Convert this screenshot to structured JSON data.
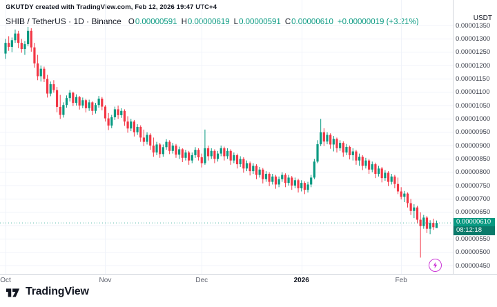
{
  "attribution": "GKUTDY created with TradingView.com, Feb 12, 2026 19:47 UTC+4",
  "legend": {
    "title": "SHIB / TetherUS · 1D · Binance",
    "ohlc": [
      {
        "label": "O",
        "value": "0.00000591"
      },
      {
        "label": "H",
        "value": "0.00000619"
      },
      {
        "label": "L",
        "value": "0.00000591"
      },
      {
        "label": "C",
        "value": "0.00000610"
      }
    ],
    "change": "+0.00000019 (+3.21%)"
  },
  "price_axis": {
    "currency": "USDT"
  },
  "last_price_badge": {
    "price": "0.00000610",
    "countdown": "08:12:18"
  },
  "footer": {
    "brand": "TradingView"
  },
  "colors": {
    "up": "#089981",
    "down": "#F23645",
    "grid": "#F0F3FA",
    "axis_border": "#D1D4DC",
    "badge_bg": "#089981",
    "badge_countdown_bg": "#0B7A6A",
    "flash": "#CA34D6",
    "text_primary": "#131722",
    "text_secondary": "#5B5F6B"
  },
  "chart_data": {
    "type": "candlestick",
    "symbol": "SHIB / TetherUS",
    "exchange": "Binance",
    "interval": "1D",
    "unit_note": "candle prices are in units of 0.00000001 USDT (1e-8)",
    "y_axis": {
      "min": 450,
      "max": 1350,
      "step": 50,
      "labels": [
        "0.00001350",
        "0.00001300",
        "0.00001250",
        "0.00001200",
        "0.00001150",
        "0.00001100",
        "0.00001050",
        "0.00001000",
        "0.00000950",
        "0.00000900",
        "0.00000850",
        "0.00000800",
        "0.00000750",
        "0.00000700",
        "0.00000650",
        "0.00000600",
        "0.00000550",
        "0.00000500",
        "0.00000450"
      ]
    },
    "x_axis": {
      "ticks": [
        {
          "label": "Oct",
          "index": 0,
          "bold": false
        },
        {
          "label": "Nov",
          "index": 31,
          "bold": false
        },
        {
          "label": "Dec",
          "index": 61,
          "bold": false
        },
        {
          "label": "2026",
          "index": 92,
          "bold": true
        },
        {
          "label": "Feb",
          "index": 123,
          "bold": false
        }
      ]
    },
    "last": {
      "open": 591,
      "high": 619,
      "low": 591,
      "close": 610,
      "change": 19,
      "change_pct": 3.21,
      "countdown": "08:12:18"
    },
    "candles": [
      [
        1245,
        1300,
        1225,
        1285
      ],
      [
        1285,
        1310,
        1255,
        1270
      ],
      [
        1270,
        1305,
        1250,
        1295
      ],
      [
        1295,
        1335,
        1285,
        1320
      ],
      [
        1320,
        1330,
        1265,
        1285
      ],
      [
        1285,
        1300,
        1248,
        1262
      ],
      [
        1262,
        1292,
        1240,
        1280
      ],
      [
        1280,
        1345,
        1272,
        1330
      ],
      [
        1330,
        1340,
        1252,
        1268
      ],
      [
        1268,
        1285,
        1192,
        1208
      ],
      [
        1208,
        1240,
        1145,
        1160
      ],
      [
        1160,
        1200,
        1140,
        1188
      ],
      [
        1188,
        1196,
        1138,
        1150
      ],
      [
        1150,
        1165,
        1080,
        1095
      ],
      [
        1095,
        1140,
        1085,
        1130
      ],
      [
        1130,
        1145,
        1098,
        1108
      ],
      [
        1108,
        1120,
        1025,
        1045
      ],
      [
        1045,
        1090,
        1000,
        1015
      ],
      [
        1015,
        1062,
        1005,
        1052
      ],
      [
        1052,
        1088,
        1042,
        1078
      ],
      [
        1078,
        1108,
        1065,
        1098
      ],
      [
        1098,
        1102,
        1048,
        1060
      ],
      [
        1060,
        1092,
        1050,
        1082
      ],
      [
        1082,
        1086,
        1035,
        1050
      ],
      [
        1050,
        1080,
        1040,
        1070
      ],
      [
        1070,
        1076,
        1024,
        1040
      ],
      [
        1040,
        1072,
        1030,
        1062
      ],
      [
        1062,
        1066,
        1014,
        1030
      ],
      [
        1030,
        1060,
        1020,
        1052
      ],
      [
        1052,
        1086,
        1042,
        1076
      ],
      [
        1076,
        1082,
        1032,
        1046
      ],
      [
        1046,
        1052,
        990,
        1002
      ],
      [
        1002,
        1022,
        958,
        975
      ],
      [
        975,
        1015,
        965,
        1006
      ],
      [
        1006,
        1046,
        996,
        1036
      ],
      [
        1036,
        1050,
        1000,
        1014
      ],
      [
        1014,
        1040,
        1004,
        1030
      ],
      [
        1030,
        1036,
        974,
        990
      ],
      [
        990,
        1010,
        948,
        964
      ],
      [
        964,
        1000,
        954,
        990
      ],
      [
        990,
        996,
        934,
        950
      ],
      [
        950,
        980,
        940,
        970
      ],
      [
        970,
        976,
        914,
        930
      ],
      [
        930,
        960,
        898,
        914
      ],
      [
        914,
        950,
        904,
        940
      ],
      [
        940,
        946,
        884,
        900
      ],
      [
        900,
        930,
        858,
        874
      ],
      [
        874,
        914,
        864,
        904
      ],
      [
        904,
        910,
        854,
        868
      ],
      [
        868,
        904,
        858,
        894
      ],
      [
        894,
        924,
        884,
        914
      ],
      [
        914,
        920,
        868,
        880
      ],
      [
        880,
        910,
        870,
        900
      ],
      [
        900,
        906,
        854,
        866
      ],
      [
        866,
        896,
        850,
        886
      ],
      [
        886,
        890,
        838,
        854
      ],
      [
        854,
        884,
        844,
        874
      ],
      [
        874,
        880,
        828,
        844
      ],
      [
        844,
        874,
        834,
        864
      ],
      [
        864,
        894,
        854,
        884
      ],
      [
        884,
        890,
        844,
        856
      ],
      [
        856,
        870,
        818,
        834
      ],
      [
        834,
        960,
        828,
        890
      ],
      [
        890,
        900,
        844,
        860
      ],
      [
        860,
        890,
        850,
        880
      ],
      [
        880,
        886,
        834,
        850
      ],
      [
        850,
        880,
        840,
        870
      ],
      [
        870,
        900,
        860,
        890
      ],
      [
        890,
        896,
        844,
        860
      ],
      [
        860,
        890,
        850,
        880
      ],
      [
        880,
        886,
        828,
        844
      ],
      [
        844,
        874,
        834,
        864
      ],
      [
        864,
        870,
        814,
        830
      ],
      [
        830,
        860,
        820,
        850
      ],
      [
        850,
        856,
        798,
        814
      ],
      [
        814,
        844,
        804,
        834
      ],
      [
        834,
        840,
        788,
        804
      ],
      [
        804,
        834,
        794,
        824
      ],
      [
        824,
        830,
        774,
        790
      ],
      [
        790,
        820,
        780,
        810
      ],
      [
        810,
        816,
        758,
        774
      ],
      [
        774,
        804,
        764,
        794
      ],
      [
        794,
        800,
        748,
        764
      ],
      [
        764,
        794,
        754,
        784
      ],
      [
        784,
        790,
        738,
        754
      ],
      [
        754,
        784,
        744,
        774
      ],
      [
        774,
        800,
        764,
        790
      ],
      [
        790,
        796,
        744,
        760
      ],
      [
        760,
        790,
        750,
        780
      ],
      [
        780,
        786,
        734,
        750
      ],
      [
        750,
        780,
        740,
        770
      ],
      [
        770,
        776,
        724,
        740
      ],
      [
        740,
        770,
        728,
        760
      ],
      [
        760,
        766,
        718,
        734
      ],
      [
        734,
        764,
        724,
        754
      ],
      [
        754,
        790,
        744,
        780
      ],
      [
        780,
        850,
        774,
        840
      ],
      [
        840,
        920,
        834,
        905
      ],
      [
        905,
        1000,
        898,
        950
      ],
      [
        950,
        965,
        898,
        915
      ],
      [
        915,
        950,
        905,
        940
      ],
      [
        940,
        946,
        888,
        904
      ],
      [
        904,
        936,
        878,
        925
      ],
      [
        925,
        930,
        874,
        890
      ],
      [
        890,
        920,
        880,
        910
      ],
      [
        910,
        916,
        858,
        874
      ],
      [
        874,
        906,
        864,
        895
      ],
      [
        895,
        900,
        848,
        864
      ],
      [
        864,
        890,
        844,
        878
      ],
      [
        878,
        884,
        828,
        844
      ],
      [
        844,
        870,
        824,
        858
      ],
      [
        858,
        864,
        808,
        824
      ],
      [
        824,
        854,
        814,
        844
      ],
      [
        844,
        850,
        794,
        810
      ],
      [
        810,
        840,
        800,
        830
      ],
      [
        830,
        836,
        778,
        794
      ],
      [
        794,
        824,
        784,
        814
      ],
      [
        814,
        820,
        762,
        778
      ],
      [
        778,
        808,
        768,
        798
      ],
      [
        798,
        804,
        748,
        764
      ],
      [
        764,
        794,
        754,
        784
      ],
      [
        784,
        790,
        740,
        756
      ],
      [
        756,
        780,
        718,
        728
      ],
      [
        728,
        744,
        698,
        708
      ],
      [
        708,
        730,
        688,
        720
      ],
      [
        720,
        724,
        668,
        684
      ],
      [
        684,
        700,
        640,
        655
      ],
      [
        655,
        680,
        628,
        668
      ],
      [
        668,
        674,
        608,
        622
      ],
      [
        622,
        650,
        480,
        598
      ],
      [
        598,
        640,
        588,
        630
      ],
      [
        630,
        636,
        572,
        588
      ],
      [
        588,
        620,
        568,
        610
      ],
      [
        610,
        626,
        584,
        594
      ],
      [
        591,
        619,
        591,
        610
      ]
    ]
  }
}
